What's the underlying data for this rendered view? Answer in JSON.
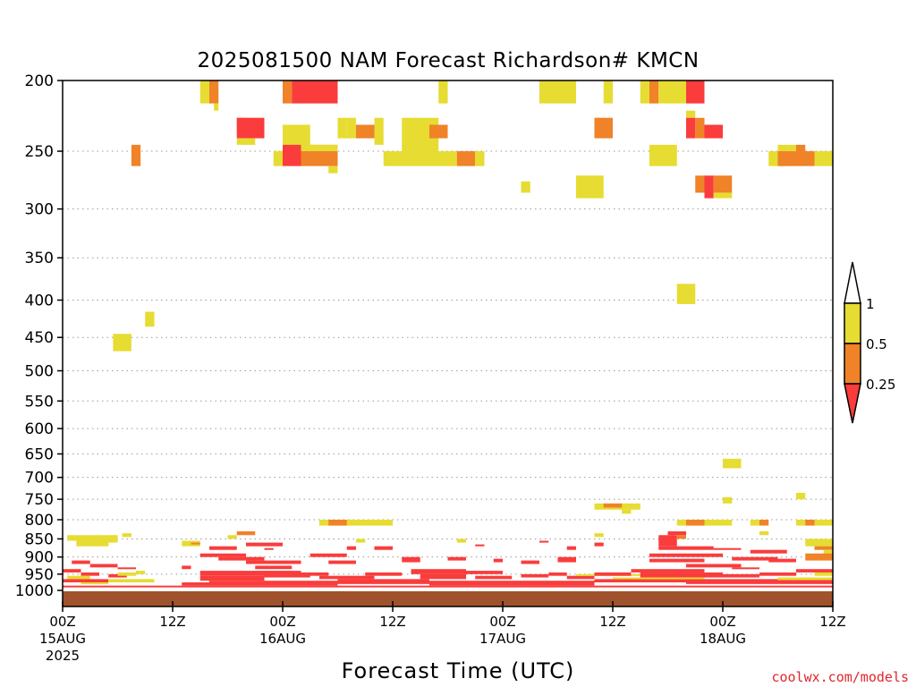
{
  "chart_data": {
    "type": "heatmap",
    "title": "2025081500 NAM Forecast Richardson# KMCN",
    "xlabel": "Forecast Time (UTC)",
    "credit": "coolwx.com/models",
    "y_ticks": [
      "200",
      "250",
      "300",
      "350",
      "400",
      "450",
      "500",
      "550",
      "600",
      "650",
      "700",
      "750",
      "800",
      "850",
      "900",
      "950",
      "1000"
    ],
    "y_values": [
      200,
      250,
      300,
      350,
      400,
      450,
      500,
      550,
      600,
      650,
      700,
      750,
      800,
      850,
      900,
      950,
      1000
    ],
    "y_scale": "log",
    "ylim": [
      1000,
      200
    ],
    "x_ticks": [
      {
        "hour": 0,
        "lines": [
          "00Z",
          "15AUG",
          "2025"
        ]
      },
      {
        "hour": 12,
        "lines": [
          "12Z"
        ]
      },
      {
        "hour": 24,
        "lines": [
          "00Z",
          "16AUG"
        ]
      },
      {
        "hour": 36,
        "lines": [
          "12Z"
        ]
      },
      {
        "hour": 48,
        "lines": [
          "00Z",
          "17AUG"
        ]
      },
      {
        "hour": 60,
        "lines": [
          "12Z"
        ]
      },
      {
        "hour": 72,
        "lines": [
          "00Z",
          "18AUG"
        ]
      },
      {
        "hour": 84,
        "lines": [
          "12Z"
        ]
      }
    ],
    "xlim": [
      0,
      84
    ],
    "colorbar": {
      "levels": [
        "0.25",
        "0.5",
        "1"
      ],
      "colors": {
        "lt_0.25": "#fa3c3c",
        "0.25_0.5": "#f08228",
        "0.5_1": "#e6dc32",
        "gt_1": "#ffffff"
      }
    },
    "colors": {
      "red": "#fa3c3c",
      "orange": "#f08228",
      "yellow": "#e6dc32",
      "ground": "#a0522d"
    },
    "cells": [
      [
        "y",
        15,
        16,
        200,
        215
      ],
      [
        "o",
        16,
        17,
        200,
        215
      ],
      [
        "y",
        16.5,
        17,
        215,
        220
      ],
      [
        "o",
        24,
        25,
        200,
        215
      ],
      [
        "r",
        25,
        30,
        200,
        215
      ],
      [
        "y",
        41,
        42,
        200,
        215
      ],
      [
        "y",
        52,
        56,
        200,
        215
      ],
      [
        "y",
        59,
        60,
        200,
        215
      ],
      [
        "y",
        63,
        64,
        200,
        215
      ],
      [
        "o",
        64,
        65,
        200,
        215
      ],
      [
        "y",
        65,
        68,
        200,
        215
      ],
      [
        "r",
        68,
        70,
        200,
        215
      ],
      [
        "y",
        68,
        69,
        220,
        225
      ],
      [
        "o",
        19,
        20,
        225,
        235
      ],
      [
        "r",
        19,
        22,
        225,
        240
      ],
      [
        "y",
        19,
        21,
        240,
        245
      ],
      [
        "y",
        24,
        27,
        230,
        245
      ],
      [
        "y",
        30,
        31,
        225,
        240
      ],
      [
        "y",
        31,
        32,
        225,
        240
      ],
      [
        "o",
        32,
        34,
        230,
        240
      ],
      [
        "y",
        34,
        35,
        225,
        245
      ],
      [
        "y",
        37,
        41,
        225,
        250
      ],
      [
        "o",
        40,
        42,
        230,
        240
      ],
      [
        "y",
        58,
        59,
        225,
        235
      ],
      [
        "o",
        58,
        60,
        225,
        240
      ],
      [
        "r",
        68,
        69,
        225,
        240
      ],
      [
        "o",
        69,
        70,
        225,
        240
      ],
      [
        "r",
        70,
        72,
        230,
        240
      ],
      [
        "y",
        23,
        24,
        250,
        262
      ],
      [
        "r",
        24,
        26,
        245,
        262
      ],
      [
        "o",
        26,
        30,
        245,
        262
      ],
      [
        "y",
        26,
        30,
        245,
        250
      ],
      [
        "y",
        35,
        40,
        250,
        262
      ],
      [
        "y",
        40,
        43,
        250,
        262
      ],
      [
        "o",
        43,
        45,
        250,
        262
      ],
      [
        "y",
        45,
        46,
        250,
        262
      ],
      [
        "o",
        7.5,
        8.5,
        245,
        262
      ],
      [
        "y",
        64,
        67,
        245,
        262
      ],
      [
        "y",
        77,
        78,
        250,
        262
      ],
      [
        "y",
        78,
        79,
        245,
        262
      ],
      [
        "o",
        78,
        82,
        250,
        262
      ],
      [
        "y",
        79,
        80,
        245,
        250
      ],
      [
        "o",
        80,
        81,
        245,
        250
      ],
      [
        "y",
        82,
        84,
        250,
        262
      ],
      [
        "y",
        29,
        30,
        262,
        268
      ],
      [
        "y",
        50,
        51,
        275,
        285
      ],
      [
        "y",
        56,
        59,
        270,
        290
      ],
      [
        "o",
        69,
        70,
        270,
        285
      ],
      [
        "r",
        70,
        71,
        270,
        290
      ],
      [
        "o",
        71,
        73,
        270,
        285
      ],
      [
        "y",
        71,
        73,
        285,
        290
      ],
      [
        "y",
        67,
        69,
        380,
        405
      ],
      [
        "y",
        9,
        10,
        415,
        435
      ],
      [
        "y",
        5.5,
        7.5,
        445,
        470
      ],
      [
        "y",
        72,
        74,
        660,
        680
      ],
      [
        "y",
        72,
        73,
        745,
        760
      ],
      [
        "y",
        80,
        81,
        735,
        750
      ],
      [
        "y",
        58,
        63,
        760,
        775
      ],
      [
        "o",
        59,
        61,
        760,
        770
      ],
      [
        "y",
        61,
        62,
        775,
        785
      ],
      [
        "y",
        28,
        36,
        800,
        815
      ],
      [
        "o",
        29,
        31,
        800,
        815
      ],
      [
        "y",
        67,
        73,
        800,
        815
      ],
      [
        "o",
        68,
        70,
        800,
        815
      ],
      [
        "y",
        75,
        76,
        800,
        815
      ],
      [
        "o",
        76,
        77,
        800,
        815
      ],
      [
        "y",
        80,
        84,
        800,
        815
      ],
      [
        "o",
        81,
        82,
        800,
        815
      ],
      [
        "y",
        0.5,
        6,
        840,
        855
      ],
      [
        "y",
        1.5,
        5,
        855,
        870
      ],
      [
        "y",
        6.5,
        7.5,
        835,
        845
      ],
      [
        "y",
        5,
        6,
        850,
        860
      ],
      [
        "o",
        19,
        21,
        830,
        840
      ],
      [
        "y",
        18,
        19,
        840,
        850
      ],
      [
        "y",
        13,
        15,
        855,
        870
      ],
      [
        "o",
        14,
        15,
        860,
        865
      ],
      [
        "y",
        58,
        59,
        835,
        845
      ],
      [
        "y",
        43,
        44,
        850,
        860
      ],
      [
        "y",
        32,
        33,
        850,
        860
      ],
      [
        "r",
        65,
        67,
        840,
        870
      ],
      [
        "o",
        67,
        68,
        840,
        850
      ],
      [
        "r",
        66,
        68,
        830,
        840
      ],
      [
        "y",
        76,
        77,
        830,
        840
      ],
      [
        "y",
        81,
        84,
        850,
        870
      ],
      [
        "o",
        82,
        84,
        870,
        880
      ],
      [
        "y",
        83,
        84,
        880,
        900
      ],
      [
        "o",
        81,
        84,
        890,
        910
      ],
      [
        "r",
        20,
        24,
        860,
        870
      ],
      [
        "r",
        16,
        19,
        870,
        880
      ],
      [
        "r",
        22,
        23,
        875,
        880
      ],
      [
        "r",
        31,
        32,
        870,
        880
      ],
      [
        "r",
        34,
        36,
        870,
        880
      ],
      [
        "r",
        45,
        46,
        865,
        870
      ],
      [
        "r",
        52,
        53,
        855,
        860
      ],
      [
        "r",
        55,
        56,
        870,
        880
      ],
      [
        "r",
        58,
        59,
        860,
        870
      ],
      [
        "r",
        65,
        71,
        870,
        880
      ],
      [
        "r",
        71,
        74,
        875,
        880
      ],
      [
        "r",
        75,
        79,
        880,
        890
      ],
      [
        "r",
        1,
        3,
        910,
        920
      ],
      [
        "r",
        3,
        6,
        920,
        930
      ],
      [
        "r",
        6,
        8,
        930,
        935
      ],
      [
        "r",
        13,
        14,
        925,
        935
      ],
      [
        "r",
        15,
        20,
        890,
        900
      ],
      [
        "r",
        17,
        22,
        900,
        910
      ],
      [
        "r",
        20,
        26,
        910,
        920
      ],
      [
        "r",
        21,
        25,
        925,
        935
      ],
      [
        "r",
        27,
        31,
        890,
        900
      ],
      [
        "r",
        29,
        32,
        910,
        920
      ],
      [
        "r",
        37,
        39,
        900,
        915
      ],
      [
        "r",
        42,
        44,
        900,
        910
      ],
      [
        "r",
        47,
        48,
        905,
        915
      ],
      [
        "r",
        50,
        52,
        910,
        920
      ],
      [
        "r",
        54,
        56,
        900,
        915
      ],
      [
        "r",
        64,
        72,
        890,
        900
      ],
      [
        "r",
        64,
        70,
        905,
        915
      ],
      [
        "r",
        68,
        74,
        920,
        930
      ],
      [
        "r",
        73,
        78,
        900,
        910
      ],
      [
        "r",
        73,
        76,
        930,
        935
      ],
      [
        "r",
        77,
        80,
        905,
        915
      ],
      [
        "r",
        0,
        2,
        935,
        945
      ],
      [
        "r",
        2,
        4,
        945,
        955
      ],
      [
        "y",
        0.5,
        3,
        955,
        965
      ],
      [
        "r",
        5,
        7,
        950,
        960
      ],
      [
        "y",
        6,
        8,
        945,
        955
      ],
      [
        "y",
        8,
        9,
        940,
        950
      ],
      [
        "r",
        15,
        26,
        940,
        955
      ],
      [
        "r",
        15,
        22,
        955,
        970
      ],
      [
        "r",
        22,
        27,
        950,
        960
      ],
      [
        "r",
        26,
        29,
        945,
        955
      ],
      [
        "r",
        28,
        34,
        955,
        965
      ],
      [
        "r",
        33,
        37,
        945,
        955
      ],
      [
        "r",
        38,
        44,
        935,
        950
      ],
      [
        "r",
        39,
        44,
        950,
        965
      ],
      [
        "r",
        44,
        48,
        940,
        950
      ],
      [
        "r",
        45,
        49,
        955,
        965
      ],
      [
        "r",
        50,
        53,
        950,
        960
      ],
      [
        "r",
        53,
        55,
        945,
        955
      ],
      [
        "r",
        55,
        58,
        955,
        965
      ],
      [
        "y",
        56,
        64,
        950,
        955
      ],
      [
        "r",
        58,
        62,
        945,
        955
      ],
      [
        "r",
        62,
        70,
        935,
        945
      ],
      [
        "r",
        63,
        72,
        945,
        960
      ],
      [
        "r",
        72,
        76,
        950,
        960
      ],
      [
        "r",
        76,
        80,
        945,
        955
      ],
      [
        "r",
        80,
        84,
        935,
        945
      ],
      [
        "y",
        82,
        84,
        945,
        955
      ],
      [
        "r",
        0,
        5,
        965,
        975
      ],
      [
        "y",
        2,
        5,
        975,
        980
      ],
      [
        "y",
        5,
        10,
        965,
        975
      ],
      [
        "r",
        13,
        16,
        975,
        985
      ],
      [
        "r",
        16,
        30,
        970,
        985
      ],
      [
        "r",
        30,
        40,
        965,
        980
      ],
      [
        "r",
        40,
        58,
        970,
        985
      ],
      [
        "r",
        58,
        60,
        965,
        975
      ],
      [
        "r",
        60,
        68,
        965,
        975
      ],
      [
        "r",
        68,
        84,
        965,
        980
      ],
      [
        "y",
        60,
        70,
        960,
        965
      ],
      [
        "y",
        78,
        84,
        960,
        968
      ],
      [
        "r",
        0,
        84,
        985,
        990
      ]
    ]
  }
}
